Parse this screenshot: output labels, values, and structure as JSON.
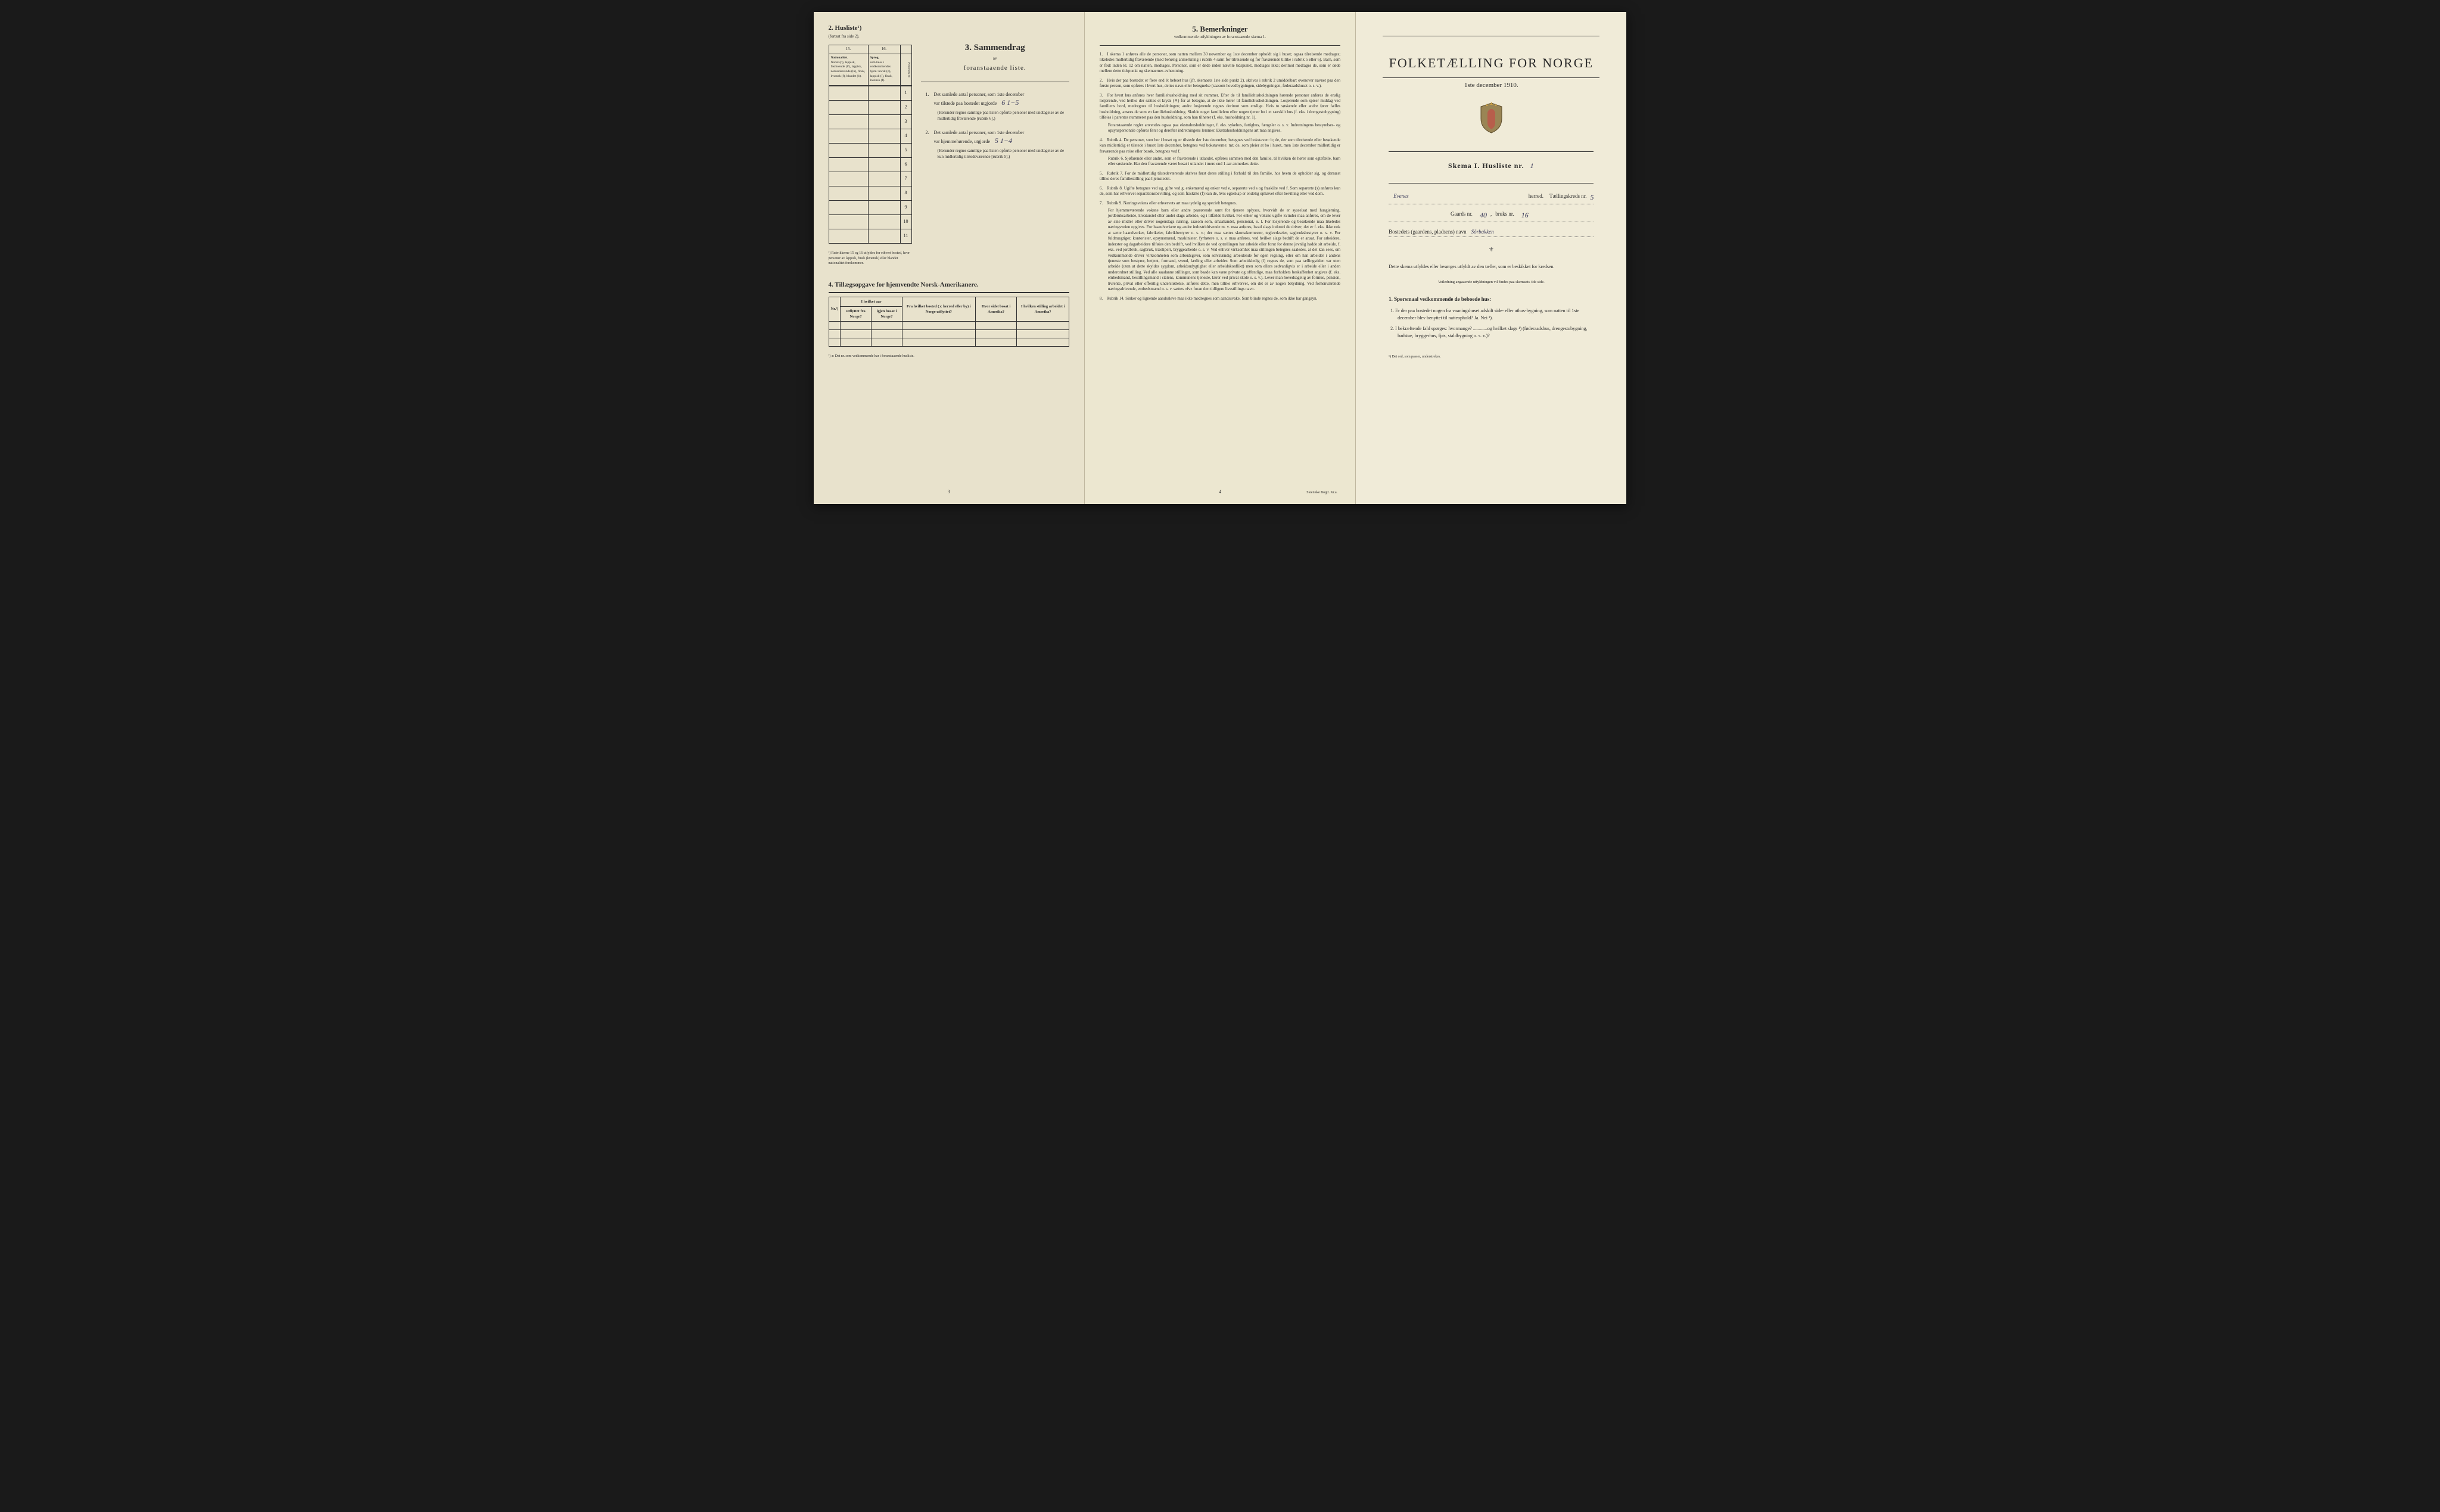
{
  "page1": {
    "husliste_title": "2. Husliste¹)",
    "husliste_sub": "(fortsat fra side 2).",
    "col_15": "15.",
    "col_16": "16.",
    "col_15_label": "Nationalitet.",
    "col_15_text": "Norsk (n), lappisk, fastboende (lf), lappisk, nomadiserende (ln), finsk, kvænsk (f), blandet (b).",
    "col_16_label": "Sprog,",
    "col_16_text": "som tales i vedkommendes hjem: norsk (n), lappisk (l), finsk, kvænsk (f).",
    "col_person": "Personens nr.",
    "rows": [
      "1",
      "2",
      "3",
      "4",
      "5",
      "6",
      "7",
      "8",
      "9",
      "10",
      "11"
    ],
    "section3_title": "3. Sammendrag",
    "section3_sub1": "av",
    "section3_sub2": "foranstaaende liste.",
    "summary1_num": "1.",
    "summary1_text": "Det samlede antal personer, som 1ste december",
    "summary1_line2": "var tilstede paa bostedet utgjorde",
    "summary1_value": "6  1−5",
    "summary1_note": "(Herunder regnes samtlige paa listen opførte personer med undtagelse av de midlertidig fraværende [rubrik 6].)",
    "summary2_num": "2.",
    "summary2_text": "Det samlede antal personer, som 1ste december",
    "summary2_line2": "var hjemmehørende, utgjorde",
    "summary2_value": "5  1−4",
    "summary2_note": "(Herunder regnes samtlige paa listen opførte personer med undtagelse av de kun midlertidig tilstedeværende [rubrik 5].)",
    "rubrik_note": "¹) Rubrikkerne 15 og 16 utfyldes for ethvert bosted, hvor personer av lappisk, finsk (kvænsk) eller blandet nationalitet forekommer.",
    "section4_title": "4. Tillægsopgave for hjemvendte Norsk-Amerikanere.",
    "table4_headers": [
      "Nr.²)",
      "I hvilket aar",
      "Fra hvilket bosted (ɔ: herred eller by) i Norge utflyttet?",
      "Hvor sidst bosat i Amerika?",
      "I hvilken stilling arbeidet i Amerika?"
    ],
    "table4_sub": [
      "",
      "utflyttet fra Norge?",
      "igjen bosat i Norge?",
      "",
      "",
      ""
    ],
    "footnote2": "²) ɔ: Det nr. som vedkommende har i foranstaaende husliste.",
    "page_num": "3"
  },
  "page2": {
    "section5_title": "5. Bemerkninger",
    "section5_sub": "vedkommende utfyldningen av foranstaaende skema 1.",
    "remarks": [
      {
        "n": "1.",
        "t": "I skema 1 anføres alle de personer, som natten mellem 30 november og 1ste december opholdt sig i huset; ogsaa tilreisende medtages; likeledes midlertidig fraværende (med behørig anmerkning i rubrik 4 samt for tilreisende og for fraværende tillike i rubrik 5 eller 6). Barn, som er født inden kl. 12 om natten, medtages. Personer, som er døde inden nævnte tidspunkt, medtages ikke; derimot medtages de, som er døde mellem dette tidspunkt og skemaernes avhentning."
      },
      {
        "n": "2.",
        "t": "Hvis der paa bostedet er flere end ét beboet hus (jfr. skemaets 1ste side punkt 2), skrives i rubrik 2 umiddelbart ovenover navnet paa den første person, som opføres i hvert hus, dettes navn eller betegnelse (saasom hovedbygningen, sidebygningen, føderaadshuset o. s. v.)."
      },
      {
        "n": "3.",
        "t": "For hvert hus anføres hver familiehusholdning med sit nummer. Efter de til familiehusholdningen hørende personer anføres de enslig losjerende, ved hvilke der sættes et kryds (✕) for at betegne, at de ikke hører til familiehusholdningen. Losjerende som spiser middag ved familiens bord, medregnes til husholdningen; andre losjerende regnes derimot som enslige. Hvis to søskende eller andre fører fælles husholdning, ansees de som en familiehusholdning. Skulde noget familielem eller nogen tjener bo i et særskilt hus (f. eks. i drengestubygning) tilføies i parentes nummeret paa den husholdning, som han tilhører (f. eks. husholdning nr. 1).",
        "sub": "Foranstaaende regler anvendes ogsaa paa ekstrahusholdninger, f. eks. sykehus, fattighus, fængsler o. s. v. Indretningens bestyrelses- og opsynspersonale opføres først og derefter indretningens lemmer. Ekstrahusholdningens art maa angives."
      },
      {
        "n": "4.",
        "t": "Rubrik 4. De personer, som bor i huset og er tilstede der 1ste december, betegnes ved bokstaven: b; de, der som tilreisende eller besøkende kun midlertidig er tilstede i huset 1ste december, betegnes ved bokstaverne: mt; de, som pleier at bo i huset, men 1ste december midlertidig er fraværende paa reise eller besøk, betegnes ved f.",
        "sub": "Rubrik 6. Sjøfarende eller andre, som er fraværende i utlandet, opføres sammen med den familie, til hvilken de hører som egtefælle, barn eller søskende. Har den fraværende været bosat i utlandet i mere end 1 aar anmerkes dette."
      },
      {
        "n": "5.",
        "t": "Rubrik 7. For de midlertidig tilstedeværende skrives først deres stilling i forhold til den familie, hos hvem de opholder sig, og dernæst tillike deres familiestilling paa hjemstedet."
      },
      {
        "n": "6.",
        "t": "Rubrik 8. Ugifte betegnes ved ug, gifte ved g, enkemænd og enker ved e, separerte ved s og fraskilte ved f. Som separerte (s) anføres kun de, som har erhvervet separationsbevilling, og som fraskilte (f) kun de, hvis egteskap er endelig ophævet efter bevilling eller ved dom."
      },
      {
        "n": "7.",
        "t": "Rubrik 9. Næringsveiens eller erhvervets art maa tydelig og specielt betegnes.",
        "sub": "For hjemmeværende voksne barn eller andre paarørende samt for tjenere oplyses, hvorvidt de er sysselsat med husgjerning, jordbruksarbeide, kreaturstel eller andet slags arbeide, og i tilfælde hvilket. For enker og voksne ugifte kvinder maa anføres, om de lever av sine midler eller driver nogenslags næring, saasom som, smaahandel, pensionat, o. l. For losjerende og besøkende maa likeledes næringsveien opgives. For haandverkere og andre industridrivende m. v. maa anføres, hvad slags industri de driver; det er f. eks. ikke nok at sætte haandverker, fabrikeier, fabrikbestyrer o. s. v.; der maa sættes skomakermester, teglverkseier, sagbruksbestyrer o. s. v. For fuldmægtiger, kontorister, opsynsmænd, maskinister, fyrbøtere o. s. v. maa anføres, ved hvilket slags bedrift de er ansat. For arbeidere, inderster og dagarbeidere tilføies den bedrift, ved hvilken de ved optællingen har arbeide eller forut for denne jevnlig hadde sit arbeide, f. eks. ved jordbruk, sagbruk, træsliperi, bryggearbeide o. s. v. Ved enhver virksomhet maa stillingen betegnes saaledes, at det kan sees, om vedkommende driver virksomheten som arbeidsgiver, som selvstændig arbeidende for egen regning, eller om han arbeider i andens tjeneste som bestyrer, betjent, formand, svend, lærling eller arbeider. Som arbeidsledig (l) regnes de, som paa tællingstiden var uten arbeide (uten at dette skyldes sygdom, arbeidsudygtighet eller arbeidskonflikt) men som ellers sedvanligvis er i arbeide eller i anden underordnet stilling. Ved alle saadanne stillinger, som baade kan være private og offentlige, maa forholdets beskaffenhet angives (f. eks. embedsmand, bestillingsmand i statens, kommunens tjeneste, lærer ved privat skole o. s. v.). Lever man hovedsagelig av formue, pension, livrente, privat eller offentlig understøttelse, anføres dette, men tillike erhvervet, om det er av nogen betydning. Ved forhenværende næringsdrivende, embedsmænd o. s. v. sættes «fv» foran den tidligere livsstillings navn."
      },
      {
        "n": "8.",
        "t": "Rubrik 14. Sinker og lignende aandssløve maa ikke medregnes som aandssvake. Som blinde regnes de, som ikke har gangsyn."
      }
    ],
    "page_num": "4",
    "printer": "Steen'ske Bogtr. Kr.a."
  },
  "page3": {
    "title": "FOLKETÆLLING FOR NORGE",
    "date": "1ste december 1910.",
    "skema": "Skema I.  Husliste nr.",
    "skema_num": "1",
    "herred_label": "herred.",
    "herred_value": "Evenes",
    "kreds_label": "Tællingskreds nr.",
    "kreds_value": "5",
    "gaard_label": "Gaards nr.",
    "gaard_value": "40",
    "bruks_label": "bruks nr.",
    "bruks_value": "16",
    "bosted_label": "Bostedets (gaardens, pladsens) navn",
    "bosted_value": "Sörbakken",
    "instructions": "Dette skema utfyldes eller besørges utfyldt av den tæller, som er beskikket for kredsen.",
    "instructions_small": "Veiledning angaaende utfyldningen vil findes paa skemaets 4de side.",
    "q_header": "1. Spørsmaal vedkommende de beboede hus:",
    "q1": "1. Er der paa bostedet nogen fra vaaningshuset adskilt side- eller uthus-bygning, som natten til 1ste december blev benyttet til natteophold?  Ja.  Nei ¹).",
    "q2": "2. I bekræftende fald spørges: hvormange? ............og hvilket slags ¹) (føderaadshus, drengestubygning, badstue, bryggerhus, fjøs, staldbygning o. s. v.)?",
    "footnote": "¹) Det ord, som passer, understrekes."
  },
  "colors": {
    "paper1": "#e8e2cc",
    "paper2": "#ece7d0",
    "paper3": "#efe9d4",
    "ink": "#2a2a2a",
    "handwriting": "#3a3a5a"
  }
}
